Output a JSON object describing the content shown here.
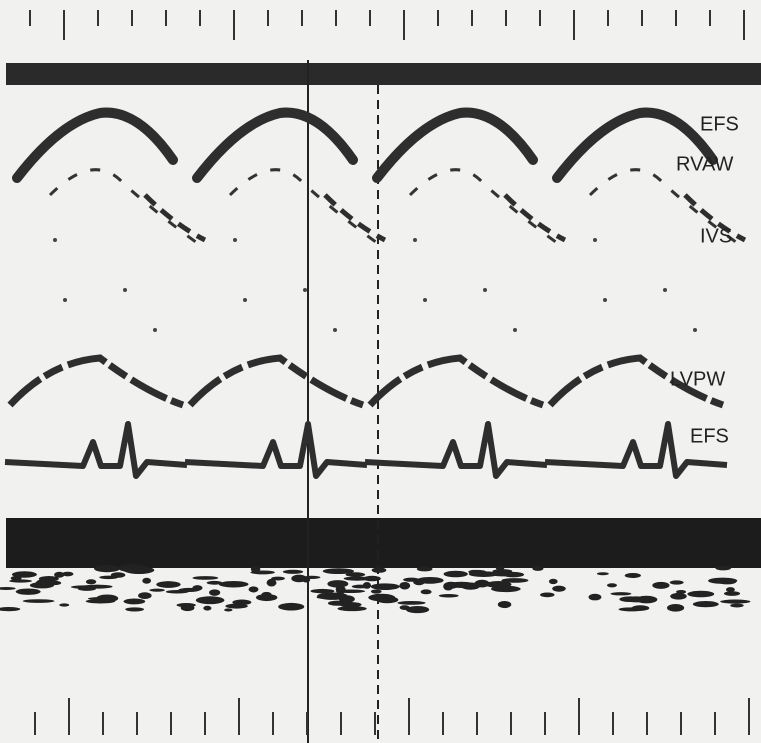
{
  "labels": [
    "EFS",
    "RVAW",
    "IVS",
    "LVPW",
    "EFS"
  ]
}
